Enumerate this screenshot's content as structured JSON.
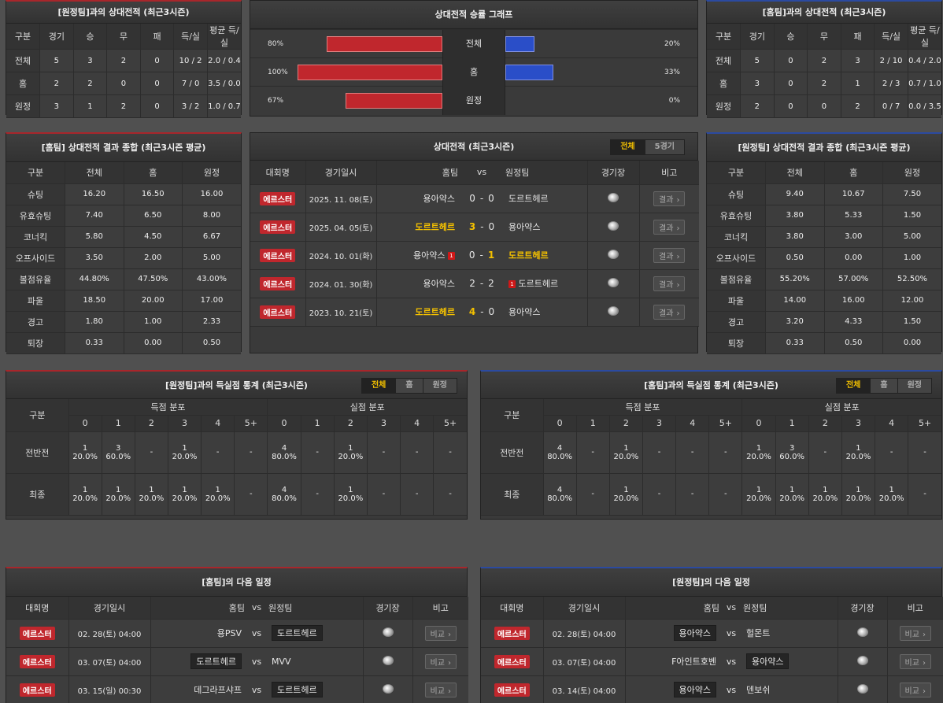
{
  "h2h_away": {
    "title": "[원정팀]과의 상대전적 (최근3시즌)",
    "headers": [
      "구분",
      "경기",
      "승",
      "무",
      "패",
      "득/실",
      "평균 득/실"
    ],
    "rows": [
      [
        "전체",
        "5",
        "3",
        "2",
        "0",
        "10 / 2",
        "2.0 / 0.4"
      ],
      [
        "홈",
        "2",
        "2",
        "0",
        "0",
        "7 / 0",
        "3.5 / 0.0"
      ],
      [
        "원정",
        "3",
        "1",
        "2",
        "0",
        "3 / 2",
        "1.0 / 0.7"
      ]
    ]
  },
  "win_graph": {
    "title": "상대전적 승률 그래프",
    "rows": [
      {
        "label": "전체",
        "left": "80%",
        "right": "20%",
        "left_val": 80,
        "right_val": 20
      },
      {
        "label": "홈",
        "left": "100%",
        "right": "33%",
        "left_val": 100,
        "right_val": 33
      },
      {
        "label": "원정",
        "left": "67%",
        "right": "0%",
        "left_val": 67,
        "right_val": 0
      }
    ],
    "colors": {
      "left": "#c0272d",
      "right": "#2a4ec8"
    }
  },
  "h2h_home": {
    "title": "[홈팀]과의 상대전적 (최근3시즌)",
    "headers": [
      "구분",
      "경기",
      "승",
      "무",
      "패",
      "득/실",
      "평균 득/실"
    ],
    "rows": [
      [
        "전체",
        "5",
        "0",
        "2",
        "3",
        "2 / 10",
        "0.4 / 2.0"
      ],
      [
        "홈",
        "3",
        "0",
        "2",
        "1",
        "2 / 3",
        "0.7 / 1.0"
      ],
      [
        "원정",
        "2",
        "0",
        "0",
        "2",
        "0 / 7",
        "0.0 / 3.5"
      ]
    ]
  },
  "summary_home": {
    "title": "[홈팀] 상대전적 결과 종합 (최근3시즌 평균)",
    "headers": [
      "구분",
      "전체",
      "홈",
      "원정"
    ],
    "rows": [
      [
        "슈팅",
        "16.20",
        "16.50",
        "16.00"
      ],
      [
        "유효슈팅",
        "7.40",
        "6.50",
        "8.00"
      ],
      [
        "코너킥",
        "5.80",
        "4.50",
        "6.67"
      ],
      [
        "오프사이드",
        "3.50",
        "2.00",
        "5.00"
      ],
      [
        "볼점유율",
        "44.80%",
        "47.50%",
        "43.00%"
      ],
      [
        "파울",
        "18.50",
        "20.00",
        "17.00"
      ],
      [
        "경고",
        "1.80",
        "1.00",
        "2.33"
      ],
      [
        "퇴장",
        "0.33",
        "0.00",
        "0.50"
      ]
    ]
  },
  "matches": {
    "title": "상대전적 (최근3시즌)",
    "toggle": [
      "전체",
      "5경기"
    ],
    "headers": {
      "league": "대회명",
      "date": "경기일시",
      "home": "홈팀",
      "vs": "vs",
      "away": "원정팀",
      "venue": "경기장",
      "note": "비고"
    },
    "rows": [
      {
        "league": "에르스터",
        "date": "2025. 11. 08(토)",
        "home": "용아약스",
        "hs": "0",
        "as": "0",
        "away": "도르트헤르",
        "winner": "",
        "home_red": "",
        "away_red": "",
        "btn": "결과"
      },
      {
        "league": "에르스터",
        "date": "2025. 04. 05(토)",
        "home": "도르트헤르",
        "hs": "3",
        "as": "0",
        "away": "용아약스",
        "winner": "home",
        "home_red": "",
        "away_red": "",
        "btn": "결과"
      },
      {
        "league": "에르스터",
        "date": "2024. 10. 01(화)",
        "home": "용아약스",
        "hs": "0",
        "as": "1",
        "away": "도르트헤르",
        "winner": "away",
        "home_red": "1",
        "away_red": "",
        "btn": "결과"
      },
      {
        "league": "에르스터",
        "date": "2024. 01. 30(화)",
        "home": "용아약스",
        "hs": "2",
        "as": "2",
        "away": "도르트헤르",
        "winner": "",
        "home_red": "",
        "away_red": "1",
        "btn": "결과"
      },
      {
        "league": "에르스터",
        "date": "2023. 10. 21(토)",
        "home": "도르트헤르",
        "hs": "4",
        "as": "0",
        "away": "용아약스",
        "winner": "home",
        "home_red": "",
        "away_red": "",
        "btn": "결과"
      }
    ]
  },
  "summary_away": {
    "title": "[원정팀] 상대전적 결과 종합 (최근3시즌 평균)",
    "headers": [
      "구분",
      "전체",
      "홈",
      "원정"
    ],
    "rows": [
      [
        "슈팅",
        "9.40",
        "10.67",
        "7.50"
      ],
      [
        "유효슈팅",
        "3.80",
        "5.33",
        "1.50"
      ],
      [
        "코너킥",
        "3.80",
        "3.00",
        "5.00"
      ],
      [
        "오프사이드",
        "0.50",
        "0.00",
        "1.00"
      ],
      [
        "볼점유율",
        "55.20%",
        "57.00%",
        "52.50%"
      ],
      [
        "파울",
        "14.00",
        "16.00",
        "12.00"
      ],
      [
        "경고",
        "3.20",
        "4.33",
        "1.50"
      ],
      [
        "퇴장",
        "0.33",
        "0.50",
        "0.00"
      ]
    ]
  },
  "goals_away": {
    "title": "[원정팀]과의 득실점 통계 (최근3시즌)",
    "toggle": [
      "전체",
      "홈",
      "원정"
    ],
    "label_col": "구분",
    "scored_label": "득점 분포",
    "conceded_label": "실점 분포",
    "cols": [
      "0",
      "1",
      "2",
      "3",
      "4",
      "5+"
    ],
    "rows": [
      {
        "label": "전반전",
        "scored": [
          [
            "1",
            "20.0%"
          ],
          [
            "3",
            "60.0%"
          ],
          [
            "-",
            ""
          ],
          [
            "1",
            "20.0%"
          ],
          [
            "-",
            ""
          ],
          [
            "-",
            ""
          ]
        ],
        "conceded": [
          [
            "4",
            "80.0%"
          ],
          [
            "-",
            ""
          ],
          [
            "1",
            "20.0%"
          ],
          [
            "-",
            ""
          ],
          [
            "-",
            ""
          ],
          [
            "-",
            ""
          ]
        ]
      },
      {
        "label": "최종",
        "scored": [
          [
            "1",
            "20.0%"
          ],
          [
            "1",
            "20.0%"
          ],
          [
            "1",
            "20.0%"
          ],
          [
            "1",
            "20.0%"
          ],
          [
            "1",
            "20.0%"
          ],
          [
            "-",
            ""
          ]
        ],
        "conceded": [
          [
            "4",
            "80.0%"
          ],
          [
            "-",
            ""
          ],
          [
            "1",
            "20.0%"
          ],
          [
            "-",
            ""
          ],
          [
            "-",
            ""
          ],
          [
            "-",
            ""
          ]
        ]
      }
    ]
  },
  "goals_home": {
    "title": "[홈팀]과의 득실점 통계 (최근3시즌)",
    "toggle": [
      "전체",
      "홈",
      "원정"
    ],
    "label_col": "구분",
    "scored_label": "득점 분포",
    "conceded_label": "실점 분포",
    "cols": [
      "0",
      "1",
      "2",
      "3",
      "4",
      "5+"
    ],
    "rows": [
      {
        "label": "전반전",
        "scored": [
          [
            "4",
            "80.0%"
          ],
          [
            "-",
            ""
          ],
          [
            "1",
            "20.0%"
          ],
          [
            "-",
            ""
          ],
          [
            "-",
            ""
          ],
          [
            "-",
            ""
          ]
        ],
        "conceded": [
          [
            "1",
            "20.0%"
          ],
          [
            "3",
            "60.0%"
          ],
          [
            "-",
            ""
          ],
          [
            "1",
            "20.0%"
          ],
          [
            "-",
            ""
          ],
          [
            "-",
            ""
          ]
        ]
      },
      {
        "label": "최종",
        "scored": [
          [
            "4",
            "80.0%"
          ],
          [
            "-",
            ""
          ],
          [
            "1",
            "20.0%"
          ],
          [
            "-",
            ""
          ],
          [
            "-",
            ""
          ],
          [
            "-",
            ""
          ]
        ],
        "conceded": [
          [
            "1",
            "20.0%"
          ],
          [
            "1",
            "20.0%"
          ],
          [
            "1",
            "20.0%"
          ],
          [
            "1",
            "20.0%"
          ],
          [
            "1",
            "20.0%"
          ],
          [
            "-",
            ""
          ]
        ]
      }
    ]
  },
  "next_home": {
    "title": "[홈팀]의 다음 일정",
    "headers": {
      "league": "대회명",
      "date": "경기일시",
      "home": "홈팀",
      "vs": "vs",
      "away": "원정팀",
      "venue": "경기장",
      "note": "비고"
    },
    "rows": [
      {
        "league": "에르스터",
        "date": "02. 28(토) 04:00",
        "home": "용PSV",
        "away": "도르트헤르",
        "box": "away",
        "btn": "비교"
      },
      {
        "league": "에르스터",
        "date": "03. 07(토) 04:00",
        "home": "도르트헤르",
        "away": "MVV",
        "box": "home",
        "btn": "비교"
      },
      {
        "league": "에르스터",
        "date": "03. 15(일) 00:30",
        "home": "데그라프샤프",
        "away": "도르트헤르",
        "box": "away",
        "btn": "비교"
      }
    ]
  },
  "next_away": {
    "title": "[원정팀]의 다음 일정",
    "headers": {
      "league": "대회명",
      "date": "경기일시",
      "home": "홈팀",
      "vs": "vs",
      "away": "원정팀",
      "venue": "경기장",
      "note": "비고"
    },
    "rows": [
      {
        "league": "에르스터",
        "date": "02. 28(토) 04:00",
        "home": "용아약스",
        "away": "헐몬트",
        "box": "home",
        "btn": "비교"
      },
      {
        "league": "에르스터",
        "date": "03. 07(토) 04:00",
        "home": "F아인트호벤",
        "away": "용아약스",
        "box": "away",
        "btn": "비교"
      },
      {
        "league": "에르스터",
        "date": "03. 14(토) 04:00",
        "home": "용아약스",
        "away": "덴보쉬",
        "box": "home",
        "btn": "비교"
      }
    ]
  }
}
